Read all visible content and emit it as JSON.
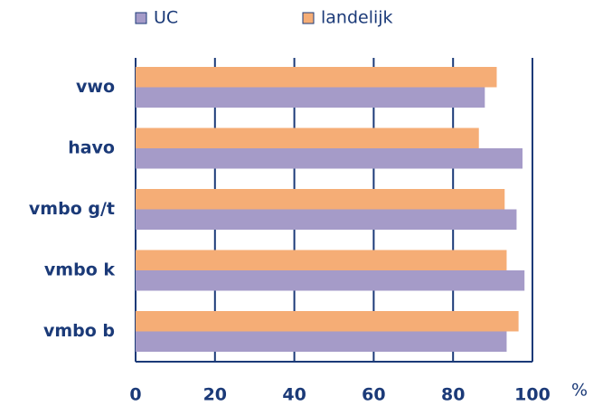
{
  "chart_data": {
    "type": "barh",
    "categories": [
      "vwo",
      "havo",
      "vmbo g/t",
      "vmbo k",
      "vmbo b"
    ],
    "series": [
      {
        "name": "landelijk",
        "color": "#f5ad76",
        "values": [
          91,
          86.5,
          93,
          93.5,
          96.5
        ]
      },
      {
        "name": "UC",
        "color": "#a59bc8",
        "values": [
          88,
          97.5,
          96,
          98,
          93.5
        ]
      }
    ],
    "legend_order": [
      "UC",
      "landelijk"
    ],
    "xlim": [
      0,
      100
    ],
    "xticks": [
      0,
      20,
      40,
      60,
      80,
      100
    ],
    "x_unit": "%",
    "grid": true,
    "legend": "top"
  }
}
